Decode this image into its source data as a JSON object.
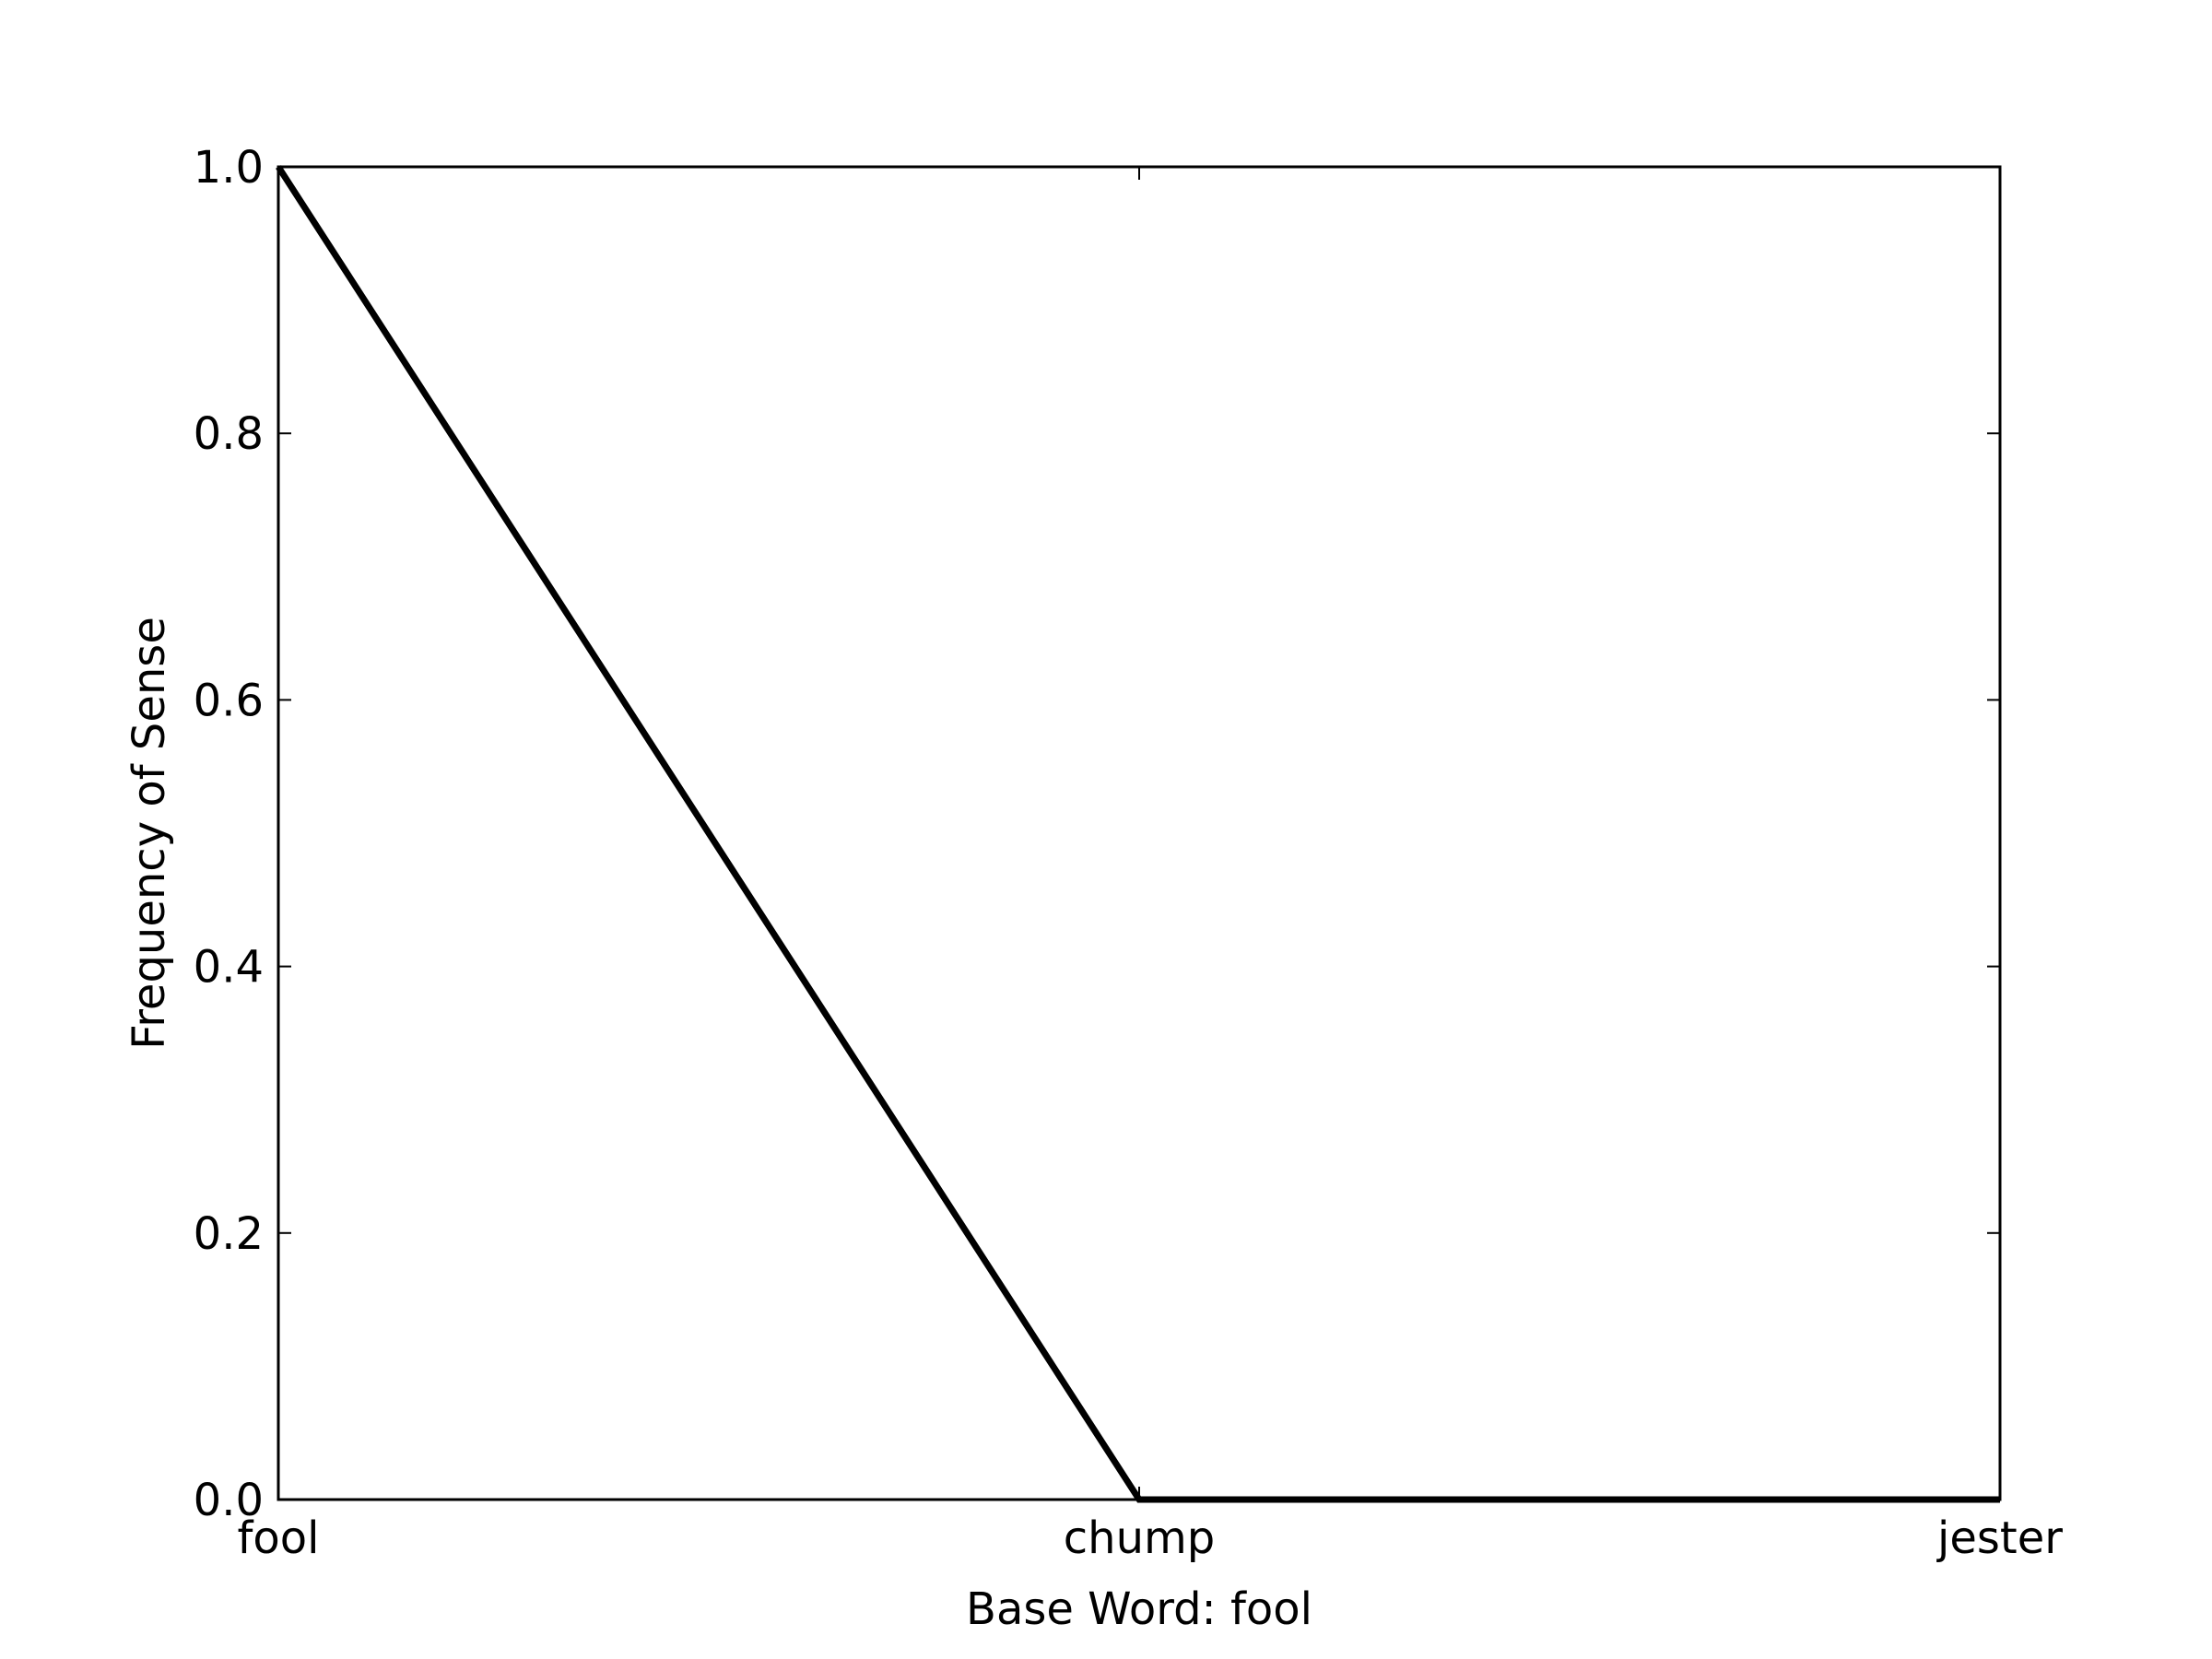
{
  "chart_data": {
    "type": "line",
    "categories": [
      "fool",
      "chump",
      "jester"
    ],
    "series": [
      {
        "values": [
          1.0,
          0.0,
          0.0
        ]
      }
    ],
    "xlabel": "Base Word: fool",
    "ylabel": "Frequency of Sense",
    "ylim": [
      0.0,
      1.0
    ],
    "yticks": [
      "0.0",
      "0.2",
      "0.4",
      "0.6",
      "0.8",
      "1.0"
    ],
    "grid": false,
    "line_color": "#000000"
  }
}
